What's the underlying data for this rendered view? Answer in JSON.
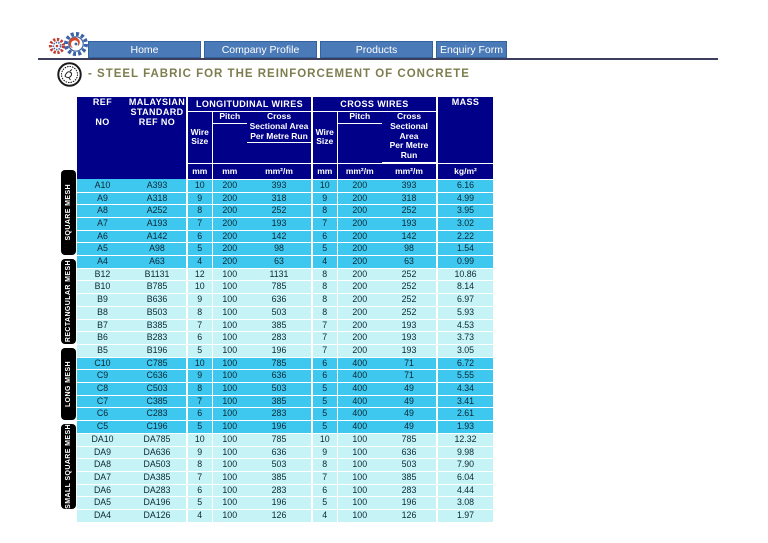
{
  "nav": {
    "items": [
      "Home",
      "Company Profile",
      "Products",
      "Enquiry Form"
    ]
  },
  "page": {
    "title": "- STEEL FABRIC FOR THE REINFORCEMENT OF CONCRETE"
  },
  "icons": {
    "logo": "gears-logo-icon",
    "seal": "certification-seal-icon"
  },
  "colors": {
    "header_navy": "#000089",
    "row_bright_cyan": "#3ec7ef",
    "row_pale_cyan": "#c6f3f6",
    "nav_blue": "#4a7ab7",
    "title_olive": "#7d7d4f",
    "tab_black": "#000000"
  },
  "table": {
    "header": {
      "ref_no": [
        "REF",
        "NO"
      ],
      "malaysian": "MALAYSIAN STANDARD REF NO",
      "longitudinal": "LONGITUDINAL WIRES",
      "cross": "CROSS WIRES",
      "mass": "MASS",
      "sub": {
        "wire_size": "Wire Size",
        "pitch": "Pitch",
        "csa_lines": [
          "Cross",
          "Sectional Area",
          "Per Metre Run"
        ]
      },
      "units": [
        "mm",
        "mm",
        "mm²/m",
        "mm",
        "mm²/m",
        "mm²/m",
        "kg/m²"
      ]
    },
    "groups": [
      {
        "label": "SQUARE MESH",
        "shade": "bright",
        "rows": [
          [
            "A10",
            "A393",
            "10",
            "200",
            "393",
            "10",
            "200",
            "393",
            "6.16"
          ],
          [
            "A9",
            "A318",
            "9",
            "200",
            "318",
            "9",
            "200",
            "318",
            "4.99"
          ],
          [
            "A8",
            "A252",
            "8",
            "200",
            "252",
            "8",
            "200",
            "252",
            "3.95"
          ],
          [
            "A7",
            "A193",
            "7",
            "200",
            "193",
            "7",
            "200",
            "193",
            "3.02"
          ],
          [
            "A6",
            "A142",
            "6",
            "200",
            "142",
            "6",
            "200",
            "142",
            "2.22"
          ],
          [
            "A5",
            "A98",
            "5",
            "200",
            "98",
            "5",
            "200",
            "98",
            "1.54"
          ],
          [
            "A4",
            "A63",
            "4",
            "200",
            "63",
            "4",
            "200",
            "63",
            "0.99"
          ]
        ]
      },
      {
        "label": "RECTANGULAR MESH",
        "shade": "pale",
        "rows": [
          [
            "B12",
            "B1131",
            "12",
            "100",
            "1131",
            "8",
            "200",
            "252",
            "10.86"
          ],
          [
            "B10",
            "B785",
            "10",
            "100",
            "785",
            "8",
            "200",
            "252",
            "8.14"
          ],
          [
            "B9",
            "B636",
            "9",
            "100",
            "636",
            "8",
            "200",
            "252",
            "6.97"
          ],
          [
            "B8",
            "B503",
            "8",
            "100",
            "503",
            "8",
            "200",
            "252",
            "5.93"
          ],
          [
            "B7",
            "B385",
            "7",
            "100",
            "385",
            "7",
            "200",
            "193",
            "4.53"
          ],
          [
            "B6",
            "B283",
            "6",
            "100",
            "283",
            "7",
            "200",
            "193",
            "3.73"
          ],
          [
            "B5",
            "B196",
            "5",
            "100",
            "196",
            "7",
            "200",
            "193",
            "3.05"
          ]
        ]
      },
      {
        "label": "LONG MESH",
        "shade": "bright",
        "rows": [
          [
            "C10",
            "C785",
            "10",
            "100",
            "785",
            "6",
            "400",
            "71",
            "6.72"
          ],
          [
            "C9",
            "C636",
            "9",
            "100",
            "636",
            "6",
            "400",
            "71",
            "5.55"
          ],
          [
            "C8",
            "C503",
            "8",
            "100",
            "503",
            "5",
            "400",
            "49",
            "4.34"
          ],
          [
            "C7",
            "C385",
            "7",
            "100",
            "385",
            "5",
            "400",
            "49",
            "3.41"
          ],
          [
            "C6",
            "C283",
            "6",
            "100",
            "283",
            "5",
            "400",
            "49",
            "2.61"
          ],
          [
            "C5",
            "C196",
            "5",
            "100",
            "196",
            "5",
            "400",
            "49",
            "1.93"
          ]
        ]
      },
      {
        "label": "SMALL SQUARE MESH",
        "shade": "pale",
        "rows": [
          [
            "DA10",
            "DA785",
            "10",
            "100",
            "785",
            "10",
            "100",
            "785",
            "12.32"
          ],
          [
            "DA9",
            "DA636",
            "9",
            "100",
            "636",
            "9",
            "100",
            "636",
            "9.98"
          ],
          [
            "DA8",
            "DA503",
            "8",
            "100",
            "503",
            "8",
            "100",
            "503",
            "7.90"
          ],
          [
            "DA7",
            "DA385",
            "7",
            "100",
            "385",
            "7",
            "100",
            "385",
            "6.04"
          ],
          [
            "DA6",
            "DA283",
            "6",
            "100",
            "283",
            "6",
            "100",
            "283",
            "4.44"
          ],
          [
            "DA5",
            "DA196",
            "5",
            "100",
            "196",
            "5",
            "100",
            "196",
            "3.08"
          ],
          [
            "DA4",
            "DA126",
            "4",
            "100",
            "126",
            "4",
            "100",
            "126",
            "1.97"
          ]
        ]
      }
    ]
  }
}
